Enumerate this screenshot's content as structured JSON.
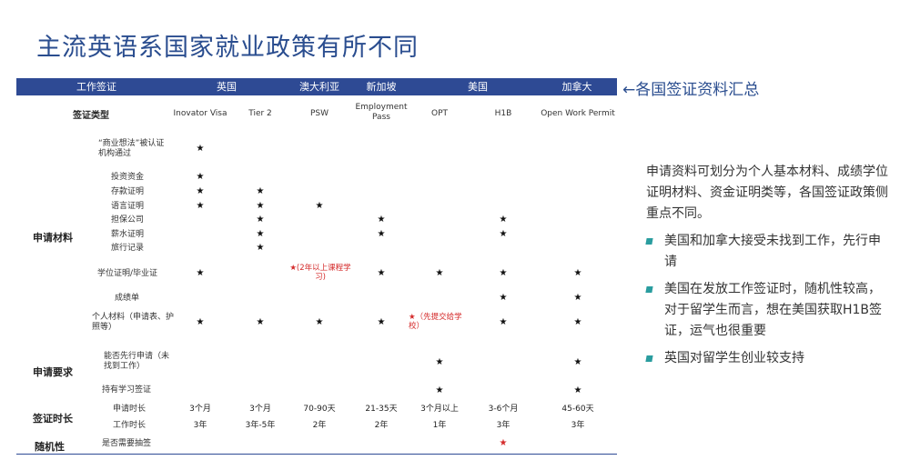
{
  "title": "主流英语系国家就业政策有所不同",
  "annotation": "←各国签证资料汇总",
  "header": {
    "first": "工作签证",
    "countries": [
      "英国",
      "澳大利亚",
      "新加坡",
      "美国",
      "加拿大"
    ]
  },
  "visa_type_label": "签证类型",
  "visa_types": [
    "Inovator Visa",
    "Tier 2",
    "PSW",
    "Employment Pass",
    "OPT",
    "H1B",
    "Open Work Permit"
  ],
  "categories": {
    "materials": "申请材料",
    "requirements": "申请要求",
    "duration": "签证时长",
    "randomness": "随机性"
  },
  "rows": {
    "business_idea": "“商业想法”被认证机构通过",
    "investment": "投资资金",
    "deposit": "存款证明",
    "language": "语言证明",
    "sponsor": "担保公司",
    "salary": "薪水证明",
    "travel": "旅行记录",
    "degree": "学位证明/毕业证",
    "transcript": "成绩单",
    "personal": "个人材料（申请表、护照等）",
    "apply_first": "能否先行申请（未找到工作）",
    "study_visa": "持有学习签证",
    "apply_time": "申请时长",
    "work_time": "工作时长",
    "lottery": "是否需要抽签"
  },
  "star": "★",
  "notes": {
    "psw_degree": "★(2年以上课程学习)",
    "opt_personal": "★（先提交给学校）"
  },
  "apply_time": [
    "3个月",
    "3个月",
    "70-90天",
    "21-35天",
    "3个月以上",
    "3-6个月",
    "45-60天"
  ],
  "work_time": [
    "3年",
    "3年-5年",
    "2年",
    "2年",
    "1年",
    "3年",
    "3年"
  ],
  "side": {
    "intro": "申请资料可划分为个人基本材料、成绩学位证明材料、资金证明类等，各国签证政策侧重点不同。",
    "bullets": [
      "美国和加拿大接受未找到工作，先行申请",
      "美国在发放工作签证时，随机性较高，对于留学生而言，想在美国获取H1B签证，运气也很重要",
      "英国对留学生创业较支持"
    ]
  },
  "colors": {
    "header_bg": "#2e4a94",
    "title": "#2a4d8f",
    "bullet": "#2a9d9f",
    "red_star": "#d42a2a"
  }
}
